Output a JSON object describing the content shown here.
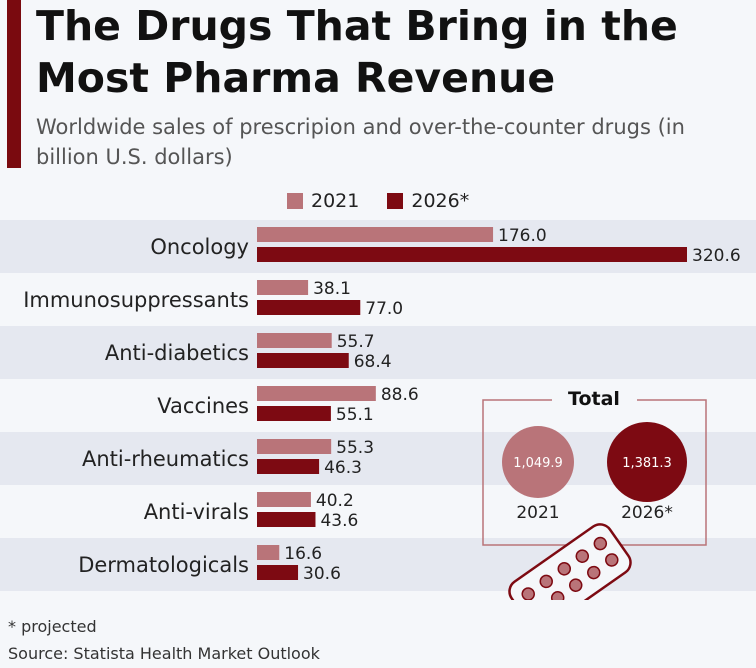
{
  "title": "The Drugs That Bring in the Most Pharma Revenue",
  "subtitle": "Worldwide sales of prescripion and over-the-counter drugs (in billion U.S. dollars)",
  "colors": {
    "series_2021": "#b97479",
    "series_2026": "#7d0a12",
    "accent": "#7a0a0f",
    "band": "#e5e8f0"
  },
  "chart_data": {
    "type": "bar",
    "orientation": "horizontal",
    "title": "The Drugs That Bring in the Most Pharma Revenue",
    "subtitle": "Worldwide sales of prescripion and over-the-counter drugs (in billion U.S. dollars)",
    "categories": [
      "Oncology",
      "Immunosuppressants",
      "Anti-diabetics",
      "Vaccines",
      "Anti-rheumatics",
      "Anti-virals",
      "Dermatologicals"
    ],
    "series": [
      {
        "name": "2021",
        "values": [
          176.0,
          38.1,
          55.7,
          88.6,
          55.3,
          40.2,
          16.6
        ],
        "labels": [
          "176.0",
          "38.1",
          "55.7",
          "88.6",
          "55.3",
          "40.2",
          "16.6"
        ]
      },
      {
        "name": "2026*",
        "values": [
          320.6,
          77.0,
          68.4,
          55.1,
          46.3,
          43.6,
          30.6
        ],
        "labels": [
          "320.6",
          "77.0",
          "68.4",
          "55.1",
          "46.3",
          "43.6",
          "30.6"
        ]
      }
    ],
    "xlim": [
      0,
      320.6
    ],
    "legend": "top",
    "totals": {
      "title": "Total",
      "items": [
        {
          "label": "2021",
          "value": 1049.9,
          "value_label": "1,049.9"
        },
        {
          "label": "2026*",
          "value": 1381.3,
          "value_label": "1,381.3"
        }
      ]
    }
  },
  "footnote": "* projected",
  "source": "Source: Statista Health Market Outlook",
  "icons": {
    "pill_blister": "pill-blister-icon"
  }
}
